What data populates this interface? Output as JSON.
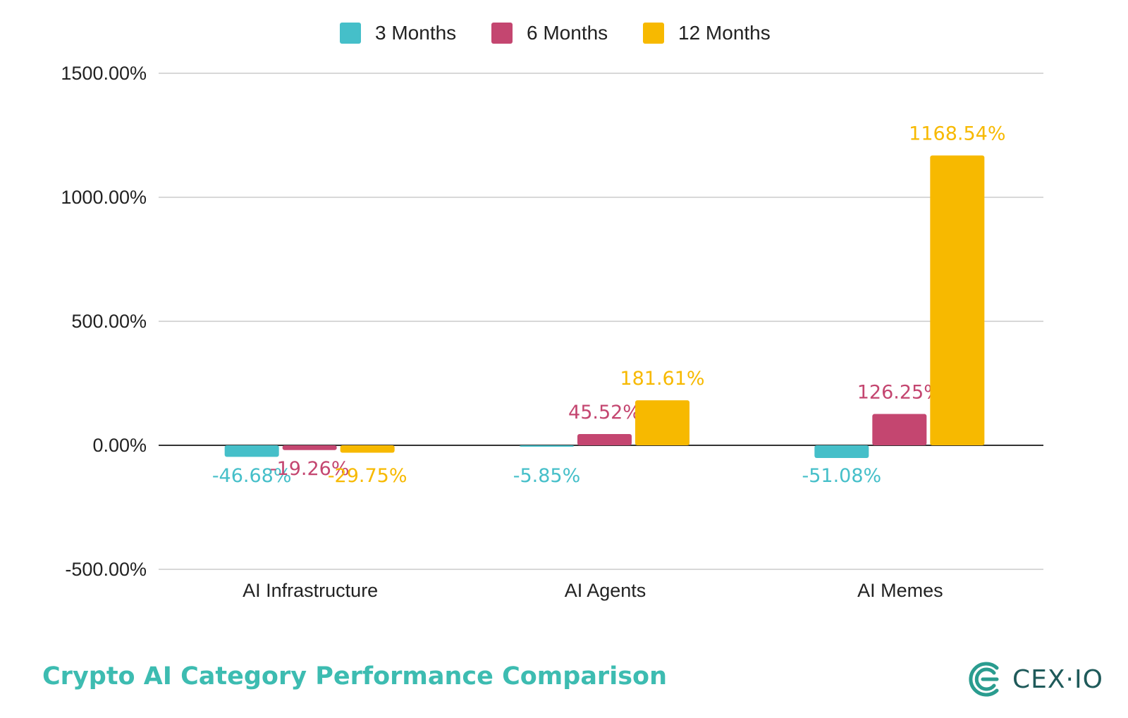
{
  "chart_data": {
    "type": "bar",
    "title": "Crypto AI Category Performance Comparison",
    "categories": [
      "AI Infrastructure",
      "AI Agents",
      "AI Memes"
    ],
    "series": [
      {
        "name": "3 Months",
        "color": "#45bfc9",
        "values": [
          -46.68,
          -5.85,
          -51.08
        ],
        "labels": [
          "-46.68%",
          "-5.85%",
          "-51.08%"
        ]
      },
      {
        "name": "6 Months",
        "color": "#c44670",
        "values": [
          -19.26,
          45.52,
          126.25
        ],
        "labels": [
          "-19.26%",
          "45.52%",
          "126.25%"
        ]
      },
      {
        "name": "12 Months",
        "color": "#f7b900",
        "values": [
          -29.75,
          181.61,
          1168.54
        ],
        "labels": [
          "-29.75%",
          "181.61%",
          "1168.54%"
        ]
      }
    ],
    "ylim": [
      -500,
      1500
    ],
    "yticks": [
      1500,
      1000,
      500,
      0,
      -500
    ],
    "ytick_labels": [
      "1500.00%",
      "1000.00%",
      "500.00%",
      "0.00%",
      "-500.00%"
    ],
    "grid": true,
    "legend": "top-center",
    "xlabel": "",
    "ylabel": ""
  },
  "footer": {
    "title": "Crypto AI Category Performance Comparison"
  },
  "brand": {
    "name": "CEX·IO",
    "icon": "cex-io-logo-icon",
    "color": "#2a9c8f"
  }
}
